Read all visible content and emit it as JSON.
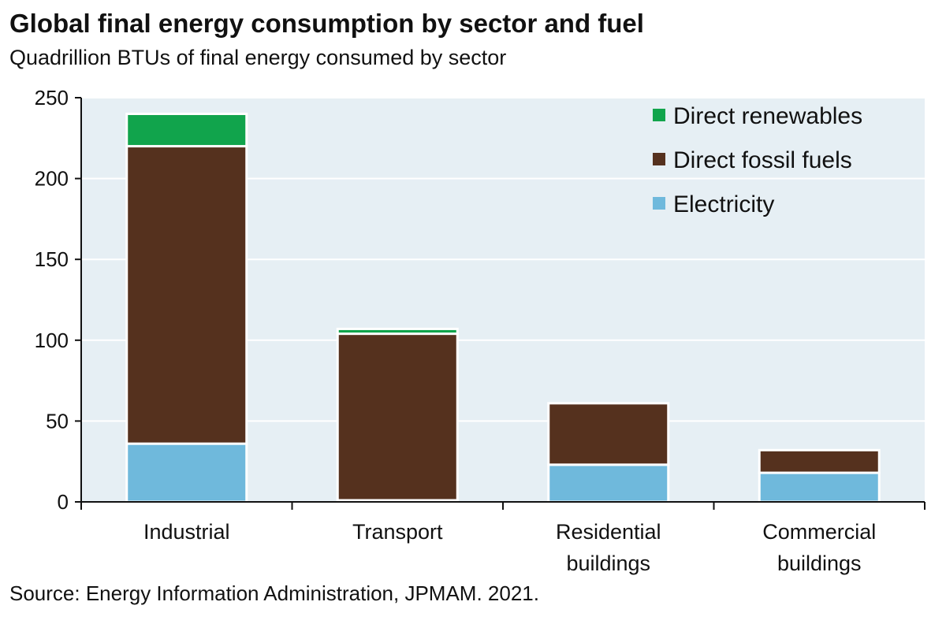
{
  "chart_data": {
    "type": "bar",
    "stacked": true,
    "title": "Global final energy consumption by sector and fuel",
    "subtitle": "Quadrillion BTUs of final energy consumed by sector",
    "source": "Source: Energy Information Administration, JPMAM. 2021.",
    "categories": [
      [
        "Industrial"
      ],
      [
        "Transport"
      ],
      [
        "Residential",
        "buildings"
      ],
      [
        "Commercial",
        "buildings"
      ]
    ],
    "series": [
      {
        "name": "Electricity",
        "color": "#6fb9dc",
        "values": [
          36,
          1,
          23,
          18
        ]
      },
      {
        "name": "Direct fossil fuels",
        "color": "#55311e",
        "values": [
          184,
          103,
          38,
          14
        ]
      },
      {
        "name": "Direct renewables",
        "color": "#11a44c",
        "values": [
          20,
          3,
          0,
          0
        ]
      }
    ],
    "legend_order": [
      "Direct renewables",
      "Direct fossil fuels",
      "Electricity"
    ],
    "legend_position": "top-right",
    "ylim": [
      0,
      250
    ],
    "yticks": [
      0,
      50,
      100,
      150,
      200,
      250
    ],
    "grid": true,
    "plot_background": "#e6eff4"
  }
}
